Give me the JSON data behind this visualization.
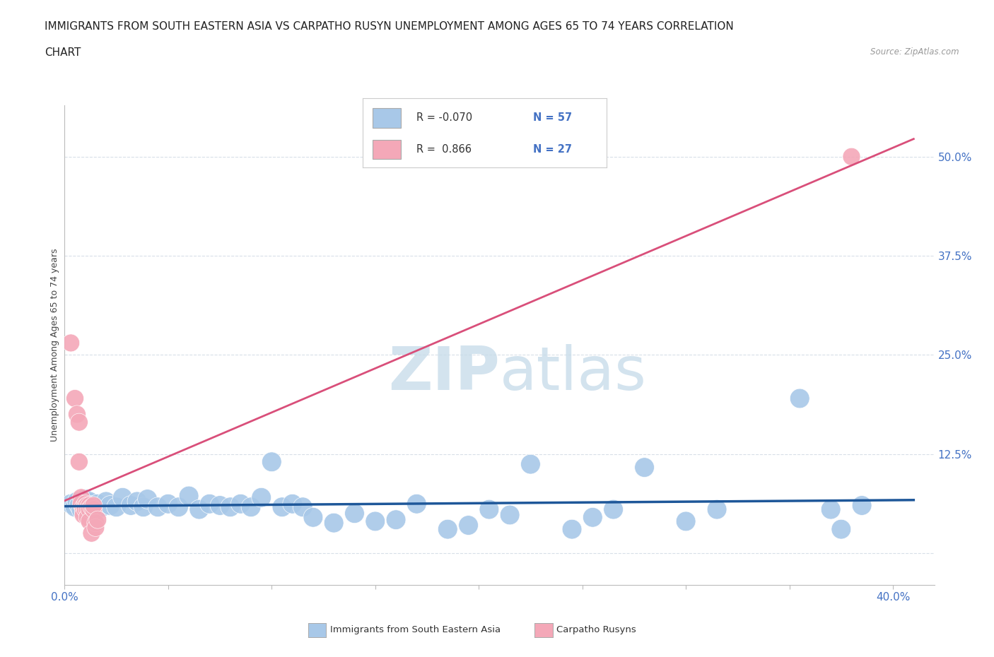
{
  "title_line1": "IMMIGRANTS FROM SOUTH EASTERN ASIA VS CARPATHO RUSYN UNEMPLOYMENT AMONG AGES 65 TO 74 YEARS CORRELATION",
  "title_line2": "CHART",
  "source": "Source: ZipAtlas.com",
  "ylabel": "Unemployment Among Ages 65 to 74 years",
  "xlim": [
    0.0,
    0.42
  ],
  "ylim": [
    -0.04,
    0.565
  ],
  "yticks": [
    0.0,
    0.125,
    0.25,
    0.375,
    0.5
  ],
  "ytick_labels": [
    "",
    "12.5%",
    "25.0%",
    "37.5%",
    "50.0%"
  ],
  "xticks": [
    0.0,
    0.05,
    0.1,
    0.15,
    0.2,
    0.25,
    0.3,
    0.35,
    0.4
  ],
  "xtick_labels_show": [
    "0.0%",
    "",
    "",
    "",
    "",
    "",
    "",
    "",
    "40.0%"
  ],
  "blue_color": "#a8c8e8",
  "pink_color": "#f4a8b8",
  "blue_line_color": "#1e5799",
  "pink_line_color": "#d94f7a",
  "blue_scatter": [
    [
      0.003,
      0.062
    ],
    [
      0.005,
      0.058
    ],
    [
      0.006,
      0.065
    ],
    [
      0.007,
      0.06
    ],
    [
      0.008,
      0.055
    ],
    [
      0.009,
      0.062
    ],
    [
      0.01,
      0.068
    ],
    [
      0.011,
      0.058
    ],
    [
      0.012,
      0.065
    ],
    [
      0.013,
      0.06
    ],
    [
      0.015,
      0.055
    ],
    [
      0.016,
      0.062
    ],
    [
      0.018,
      0.058
    ],
    [
      0.02,
      0.065
    ],
    [
      0.022,
      0.06
    ],
    [
      0.025,
      0.058
    ],
    [
      0.028,
      0.07
    ],
    [
      0.032,
      0.06
    ],
    [
      0.035,
      0.065
    ],
    [
      0.038,
      0.058
    ],
    [
      0.04,
      0.068
    ],
    [
      0.045,
      0.058
    ],
    [
      0.05,
      0.062
    ],
    [
      0.055,
      0.058
    ],
    [
      0.06,
      0.072
    ],
    [
      0.065,
      0.055
    ],
    [
      0.07,
      0.062
    ],
    [
      0.075,
      0.06
    ],
    [
      0.08,
      0.058
    ],
    [
      0.085,
      0.062
    ],
    [
      0.09,
      0.058
    ],
    [
      0.095,
      0.07
    ],
    [
      0.1,
      0.115
    ],
    [
      0.105,
      0.058
    ],
    [
      0.11,
      0.062
    ],
    [
      0.115,
      0.058
    ],
    [
      0.12,
      0.045
    ],
    [
      0.13,
      0.038
    ],
    [
      0.14,
      0.05
    ],
    [
      0.15,
      0.04
    ],
    [
      0.16,
      0.042
    ],
    [
      0.17,
      0.062
    ],
    [
      0.185,
      0.03
    ],
    [
      0.195,
      0.035
    ],
    [
      0.205,
      0.055
    ],
    [
      0.215,
      0.048
    ],
    [
      0.225,
      0.112
    ],
    [
      0.245,
      0.03
    ],
    [
      0.255,
      0.045
    ],
    [
      0.265,
      0.055
    ],
    [
      0.28,
      0.108
    ],
    [
      0.3,
      0.04
    ],
    [
      0.315,
      0.055
    ],
    [
      0.355,
      0.195
    ],
    [
      0.37,
      0.055
    ],
    [
      0.375,
      0.03
    ],
    [
      0.385,
      0.06
    ]
  ],
  "pink_scatter": [
    [
      0.003,
      0.265
    ],
    [
      0.005,
      0.195
    ],
    [
      0.006,
      0.175
    ],
    [
      0.007,
      0.165
    ],
    [
      0.007,
      0.115
    ],
    [
      0.008,
      0.07
    ],
    [
      0.008,
      0.062
    ],
    [
      0.009,
      0.058
    ],
    [
      0.009,
      0.052
    ],
    [
      0.009,
      0.048
    ],
    [
      0.01,
      0.062
    ],
    [
      0.01,
      0.058
    ],
    [
      0.01,
      0.055
    ],
    [
      0.011,
      0.06
    ],
    [
      0.011,
      0.055
    ],
    [
      0.011,
      0.045
    ],
    [
      0.012,
      0.06
    ],
    [
      0.012,
      0.055
    ],
    [
      0.012,
      0.04
    ],
    [
      0.013,
      0.058
    ],
    [
      0.013,
      0.025
    ],
    [
      0.014,
      0.055
    ],
    [
      0.014,
      0.06
    ],
    [
      0.015,
      0.038
    ],
    [
      0.015,
      0.032
    ],
    [
      0.016,
      0.042
    ],
    [
      0.38,
      0.5
    ]
  ],
  "watermark_zip": "ZIP",
  "watermark_atlas": "atlas",
  "watermark_color": "#c8dcea",
  "grid_color": "#d8dfe8",
  "title_fontsize": 11,
  "tick_label_color": "#4472c4",
  "background_color": "#ffffff",
  "legend_label1": "Immigrants from South Eastern Asia",
  "legend_label2": "Carpatho Rusyns"
}
